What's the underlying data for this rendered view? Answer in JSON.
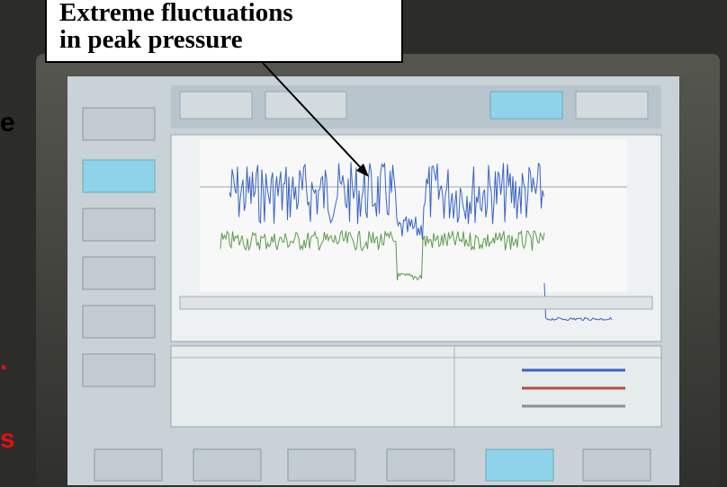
{
  "callout": {
    "lines": [
      "Extreme fluctuations",
      "in peak pressure"
    ]
  },
  "edge_fragments": [
    "e",
    ".",
    "s"
  ]
}
